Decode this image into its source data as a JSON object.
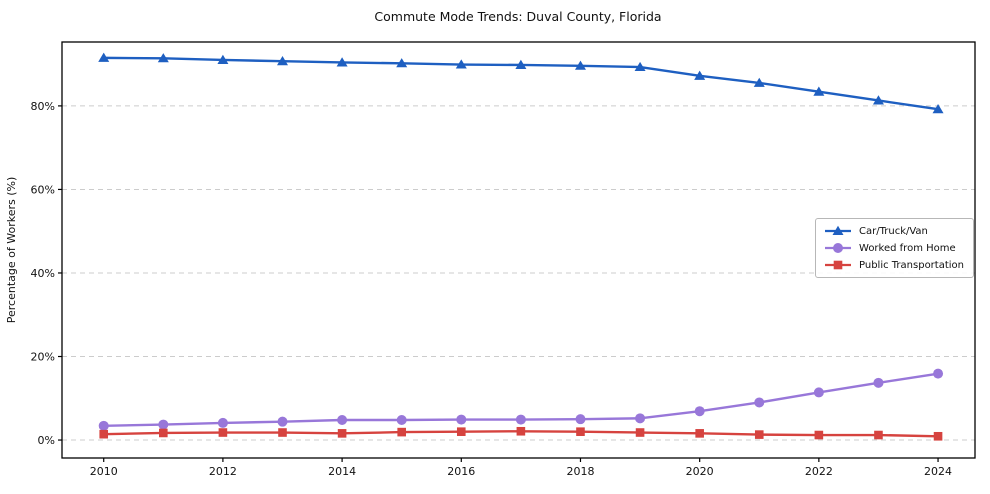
{
  "chart_data": {
    "type": "line",
    "title": "Commute Mode Trends: Duval County, Florida",
    "xlabel": "",
    "ylabel": "Percentage of Workers (%)",
    "x": [
      2010,
      2011,
      2012,
      2013,
      2014,
      2015,
      2016,
      2017,
      2018,
      2019,
      2020,
      2021,
      2022,
      2023,
      2024
    ],
    "x_ticks": [
      2010,
      2012,
      2014,
      2016,
      2018,
      2020,
      2022,
      2024
    ],
    "y_ticks": [
      0,
      20,
      40,
      60,
      80
    ],
    "y_tick_suffix": "%",
    "xlim": [
      2009.3,
      2024.62
    ],
    "ylim": [
      -4.3,
      95.3
    ],
    "grid": "horizontal-dashed",
    "grid_color": "#cccccc",
    "axis_color": "#000000",
    "legend_position": "center-right",
    "series": [
      {
        "name": "Car/Truck/Van",
        "color": "#1e5fc1",
        "marker": "triangle",
        "values": [
          91.5,
          91.4,
          91.0,
          90.7,
          90.4,
          90.2,
          89.9,
          89.8,
          89.6,
          89.3,
          87.2,
          85.5,
          83.4,
          81.3,
          79.2
        ]
      },
      {
        "name": "Worked from Home",
        "color": "#9877d9",
        "marker": "circle",
        "values": [
          3.4,
          3.7,
          4.1,
          4.4,
          4.8,
          4.8,
          4.9,
          4.9,
          5.0,
          5.2,
          6.9,
          9.0,
          11.4,
          13.7,
          15.9
        ]
      },
      {
        "name": "Public Transportation",
        "color": "#d6433f",
        "marker": "square",
        "values": [
          1.4,
          1.7,
          1.8,
          1.8,
          1.6,
          1.9,
          2.0,
          2.1,
          2.0,
          1.8,
          1.6,
          1.3,
          1.2,
          1.2,
          0.9
        ]
      }
    ]
  }
}
